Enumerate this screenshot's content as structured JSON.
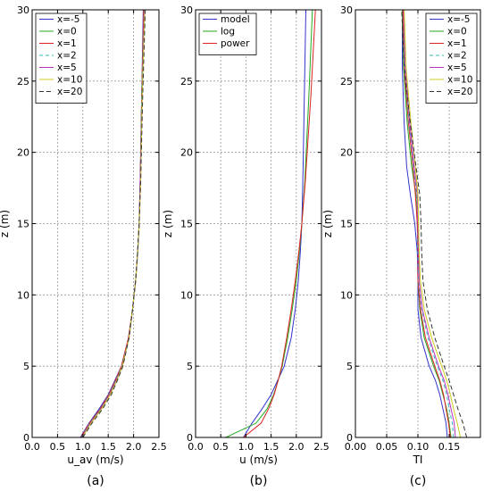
{
  "chart_data": [
    {
      "type": "line",
      "panel_label": "(a)",
      "xlabel": "u_av (m/s)",
      "ylabel": "z (m)",
      "xlim": [
        0,
        2.5
      ],
      "ylim": [
        0,
        30
      ],
      "xticks": [
        0.0,
        0.5,
        1.0,
        1.5,
        2.0,
        2.5
      ],
      "xtick_labels": [
        "0.0",
        "0.5",
        "1.0",
        "1.5",
        "2.0",
        "2.5"
      ],
      "yticks": [
        0,
        5,
        10,
        15,
        20,
        25,
        30
      ],
      "ytick_labels": [
        "0",
        "5",
        "10",
        "15",
        "20",
        "25",
        "30"
      ],
      "grid": true,
      "legend_position": "top-left",
      "series": [
        {
          "name": "x=-5",
          "color": "#3333cc",
          "dash": "",
          "x": [
            0.95,
            1.12,
            1.32,
            1.5,
            1.63,
            1.76,
            1.9,
            1.98,
            2.04,
            2.08,
            2.11,
            2.13,
            2.16,
            2.19
          ],
          "y": [
            0,
            1,
            2,
            3,
            4,
            5,
            7,
            9,
            11,
            13,
            15,
            18,
            24,
            30
          ]
        },
        {
          "name": "x=0",
          "color": "#22aa22",
          "dash": "",
          "x": [
            0.97,
            1.14,
            1.35,
            1.52,
            1.65,
            1.77,
            1.91,
            1.98,
            2.04,
            2.08,
            2.11,
            2.13,
            2.16,
            2.2
          ],
          "y": [
            0,
            1,
            2,
            3,
            4,
            5,
            7,
            9,
            11,
            13,
            15,
            18,
            24,
            30
          ]
        },
        {
          "name": "x=1",
          "color": "#dd2222",
          "dash": "",
          "x": [
            0.96,
            1.13,
            1.34,
            1.51,
            1.64,
            1.76,
            1.9,
            1.98,
            2.04,
            2.08,
            2.11,
            2.13,
            2.16,
            2.2
          ],
          "y": [
            0,
            1,
            2,
            3,
            4,
            5,
            7,
            9,
            11,
            13,
            15,
            18,
            24,
            30
          ]
        },
        {
          "name": "x=2",
          "color": "#33bbbb",
          "dash": "4,3",
          "x": [
            0.97,
            1.14,
            1.35,
            1.52,
            1.65,
            1.77,
            1.91,
            1.98,
            2.04,
            2.08,
            2.11,
            2.13,
            2.16,
            2.21
          ],
          "y": [
            0,
            1,
            2,
            3,
            4,
            5,
            7,
            9,
            11,
            13,
            15,
            18,
            24,
            30
          ]
        },
        {
          "name": "x=5",
          "color": "#bb33bb",
          "dash": "",
          "x": [
            0.98,
            1.15,
            1.36,
            1.53,
            1.66,
            1.78,
            1.91,
            1.98,
            2.04,
            2.08,
            2.11,
            2.13,
            2.17,
            2.21
          ],
          "y": [
            0,
            1,
            2,
            3,
            4,
            5,
            7,
            9,
            11,
            13,
            15,
            18,
            24,
            30
          ]
        },
        {
          "name": "x=10",
          "color": "#cccc22",
          "dash": "",
          "x": [
            0.99,
            1.16,
            1.37,
            1.54,
            1.67,
            1.78,
            1.91,
            1.98,
            2.04,
            2.08,
            2.11,
            2.14,
            2.17,
            2.22
          ],
          "y": [
            0,
            1,
            2,
            3,
            4,
            5,
            7,
            9,
            11,
            13,
            15,
            18,
            24,
            30
          ]
        },
        {
          "name": "x=20",
          "color": "#333333",
          "dash": "5,3",
          "x": [
            1.0,
            1.18,
            1.39,
            1.56,
            1.68,
            1.79,
            1.91,
            1.98,
            2.04,
            2.08,
            2.11,
            2.14,
            2.18,
            2.23
          ],
          "y": [
            0,
            1,
            2,
            3,
            4,
            5,
            7,
            9,
            11,
            13,
            15,
            18,
            24,
            30
          ]
        }
      ]
    },
    {
      "type": "line",
      "panel_label": "(b)",
      "xlabel": "u (m/s)",
      "ylabel": "z (m)",
      "xlim": [
        0,
        2.5
      ],
      "ylim": [
        0,
        30
      ],
      "xticks": [
        0.0,
        0.5,
        1.0,
        1.5,
        2.0,
        2.5
      ],
      "xtick_labels": [
        "0.0",
        "0.5",
        "1.0",
        "1.5",
        "2.0",
        "2.5"
      ],
      "yticks": [
        0,
        5,
        10,
        15,
        20,
        25,
        30
      ],
      "ytick_labels": [
        "0",
        "5",
        "10",
        "15",
        "20",
        "25",
        "30"
      ],
      "grid": true,
      "legend_position": "top-left",
      "series": [
        {
          "name": "model",
          "color": "#3333cc",
          "dash": "",
          "x": [
            0.95,
            1.12,
            1.32,
            1.5,
            1.63,
            1.76,
            1.9,
            1.98,
            2.04,
            2.08,
            2.11,
            2.13,
            2.16,
            2.19
          ],
          "y": [
            0,
            1,
            2,
            3,
            4,
            5,
            7,
            9,
            11,
            13,
            15,
            18,
            24,
            30
          ]
        },
        {
          "name": "log",
          "color": "#22aa22",
          "dash": "",
          "x": [
            0.6,
            1.2,
            1.42,
            1.55,
            1.64,
            1.72,
            1.83,
            1.92,
            2.0,
            2.06,
            2.11,
            2.17,
            2.25,
            2.32
          ],
          "y": [
            0,
            1,
            2,
            3,
            4,
            5,
            7,
            9,
            11,
            13,
            15,
            18,
            24,
            30
          ]
        },
        {
          "name": "power",
          "color": "#dd2222",
          "dash": "",
          "x": [
            0.95,
            1.3,
            1.45,
            1.56,
            1.64,
            1.71,
            1.81,
            1.9,
            1.98,
            2.05,
            2.11,
            2.18,
            2.29,
            2.38
          ],
          "y": [
            0,
            1,
            2,
            3,
            4,
            5,
            7,
            9,
            11,
            13,
            15,
            18,
            24,
            30
          ]
        }
      ]
    },
    {
      "type": "line",
      "panel_label": "(c)",
      "xlabel": "TI",
      "ylabel": "z (m)",
      "xlim": [
        0,
        0.2
      ],
      "ylim": [
        0,
        30
      ],
      "xticks": [
        0.0,
        0.05,
        0.1,
        0.15
      ],
      "xtick_labels": [
        "0.00",
        "0.05",
        "0.10",
        "0.15"
      ],
      "yticks": [
        0,
        5,
        10,
        15,
        20,
        25,
        30
      ],
      "ytick_labels": [
        "0",
        "5",
        "10",
        "15",
        "20",
        "25",
        "30"
      ],
      "grid": true,
      "legend_position": "top-right",
      "series": [
        {
          "name": "x=-5",
          "color": "#3333cc",
          "dash": "",
          "x": [
            0.147,
            0.145,
            0.14,
            0.135,
            0.128,
            0.118,
            0.105,
            0.1,
            0.1,
            0.099,
            0.095,
            0.088,
            0.082,
            0.078,
            0.075,
            0.075
          ],
          "y": [
            0,
            1,
            2,
            3,
            4,
            5,
            7,
            9,
            11,
            13,
            15,
            17,
            19,
            22,
            26,
            30
          ]
        },
        {
          "name": "x=0",
          "color": "#22aa22",
          "dash": "",
          "x": [
            0.153,
            0.15,
            0.146,
            0.14,
            0.134,
            0.125,
            0.11,
            0.103,
            0.1,
            0.1,
            0.099,
            0.097,
            0.09,
            0.083,
            0.077,
            0.075
          ],
          "y": [
            0,
            1,
            2,
            3,
            4,
            5,
            7,
            9,
            11,
            13,
            15,
            17,
            19,
            22,
            26,
            30
          ]
        },
        {
          "name": "x=1",
          "color": "#dd2222",
          "dash": "",
          "x": [
            0.152,
            0.149,
            0.145,
            0.141,
            0.135,
            0.127,
            0.112,
            0.104,
            0.1,
            0.1,
            0.099,
            0.096,
            0.092,
            0.085,
            0.078,
            0.076
          ],
          "y": [
            0,
            1,
            2,
            3,
            4,
            5,
            7,
            9,
            11,
            13,
            15,
            17,
            19,
            22,
            26,
            30
          ]
        },
        {
          "name": "x=2",
          "color": "#33bbbb",
          "dash": "4,3",
          "x": [
            0.157,
            0.155,
            0.15,
            0.146,
            0.14,
            0.131,
            0.116,
            0.106,
            0.101,
            0.1,
            0.1,
            0.098,
            0.093,
            0.086,
            0.079,
            0.077
          ],
          "y": [
            0,
            1,
            2,
            3,
            4,
            5,
            7,
            9,
            11,
            13,
            15,
            17,
            19,
            22,
            26,
            30
          ]
        },
        {
          "name": "x=5",
          "color": "#bb33bb",
          "dash": "",
          "x": [
            0.16,
            0.158,
            0.153,
            0.148,
            0.142,
            0.133,
            0.118,
            0.107,
            0.102,
            0.101,
            0.1,
            0.099,
            0.094,
            0.087,
            0.08,
            0.077
          ],
          "y": [
            0,
            1,
            2,
            3,
            4,
            5,
            7,
            9,
            11,
            13,
            15,
            17,
            19,
            22,
            26,
            30
          ]
        },
        {
          "name": "x=10",
          "color": "#cccc22",
          "dash": "",
          "x": [
            0.168,
            0.163,
            0.157,
            0.152,
            0.146,
            0.138,
            0.122,
            0.11,
            0.104,
            0.102,
            0.101,
            0.1,
            0.096,
            0.089,
            0.081,
            0.078
          ],
          "y": [
            0,
            1,
            2,
            3,
            4,
            5,
            7,
            9,
            11,
            13,
            15,
            17,
            19,
            22,
            26,
            30
          ]
        },
        {
          "name": "x=20",
          "color": "#333333",
          "dash": "5,3",
          "x": [
            0.178,
            0.172,
            0.164,
            0.157,
            0.15,
            0.142,
            0.127,
            0.115,
            0.108,
            0.106,
            0.105,
            0.103,
            0.097,
            0.088,
            0.078,
            0.074
          ],
          "y": [
            0,
            1,
            2,
            3,
            4,
            5,
            7,
            9,
            11,
            13,
            15,
            17,
            19,
            22,
            26,
            30
          ]
        }
      ]
    }
  ]
}
